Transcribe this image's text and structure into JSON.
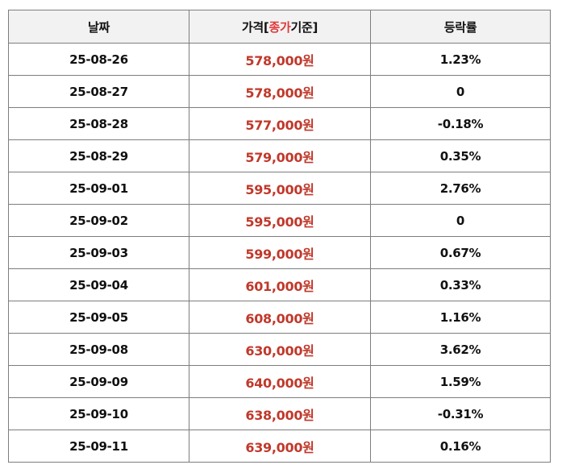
{
  "colors": {
    "header_bg": "#f2f2f2",
    "border": "#7d7d7d",
    "price_text": "#c0392b",
    "header_highlight": "#e03a3a"
  },
  "table": {
    "headers": {
      "date": "날짜",
      "price_prefix": "가격[",
      "price_highlight": "종가",
      "price_suffix": "기준]",
      "change": "등락률"
    },
    "rows": [
      {
        "date": "25-08-26",
        "price": "578,000원",
        "change": "1.23%"
      },
      {
        "date": "25-08-27",
        "price": "578,000원",
        "change": "0"
      },
      {
        "date": "25-08-28",
        "price": "577,000원",
        "change": "-0.18%"
      },
      {
        "date": "25-08-29",
        "price": "579,000원",
        "change": "0.35%"
      },
      {
        "date": "25-09-01",
        "price": "595,000원",
        "change": "2.76%"
      },
      {
        "date": "25-09-02",
        "price": "595,000원",
        "change": "0"
      },
      {
        "date": "25-09-03",
        "price": "599,000원",
        "change": "0.67%"
      },
      {
        "date": "25-09-04",
        "price": "601,000원",
        "change": "0.33%"
      },
      {
        "date": "25-09-05",
        "price": "608,000원",
        "change": "1.16%"
      },
      {
        "date": "25-09-08",
        "price": "630,000원",
        "change": "3.62%"
      },
      {
        "date": "25-09-09",
        "price": "640,000원",
        "change": "1.59%"
      },
      {
        "date": "25-09-10",
        "price": "638,000원",
        "change": "-0.31%"
      },
      {
        "date": "25-09-11",
        "price": "639,000원",
        "change": "0.16%"
      }
    ]
  }
}
